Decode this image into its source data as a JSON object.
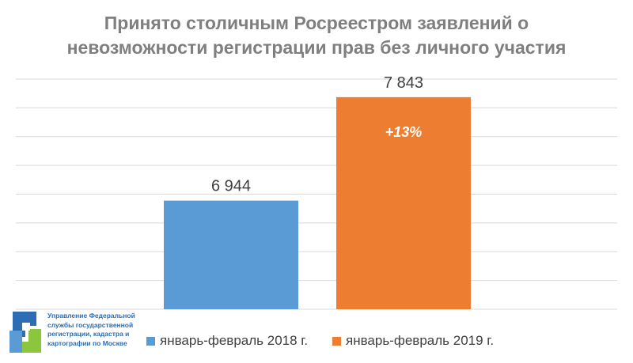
{
  "chart_data": {
    "type": "bar",
    "title_line1": "Принято столичным Росреестром заявлений о",
    "title_line2": "невозможности регистрации прав без личного участия",
    "categories": [
      "январь-февраль 2018 г.",
      "январь-февраль 2019 г."
    ],
    "series": [
      {
        "name": "январь-февраль 2018 г.",
        "value": 6944,
        "label": "6 944",
        "color": "#5b9bd5"
      },
      {
        "name": "январь-февраль 2019 г.",
        "value": 7843,
        "label": "7 843",
        "color": "#ed7d31"
      }
    ],
    "annotation": "+13%",
    "ylim": [
      6000,
      8000
    ],
    "grid": true,
    "legend_position": "bottom"
  },
  "logo": {
    "text_lines": [
      "Управление Федеральной",
      "службы государственной",
      "регистрации, кадастра и",
      "картографии по Москве"
    ],
    "colors": [
      "#2d6db3",
      "#8cc63f",
      "#5b9bd5"
    ]
  }
}
